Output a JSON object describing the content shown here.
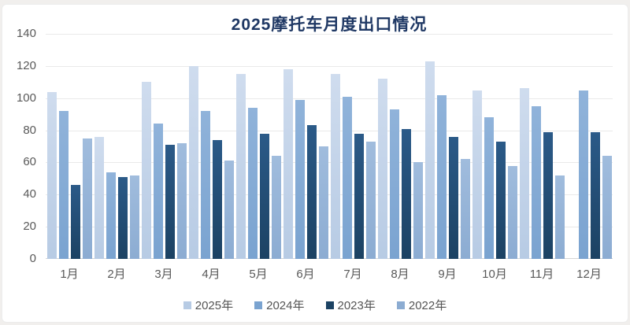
{
  "title_color": "#1f3864",
  "chart_data": {
    "type": "bar",
    "title": "2025摩托车月度出口情况",
    "xlabel": "",
    "ylabel": "",
    "ylim": [
      0,
      140
    ],
    "y_ticks": [
      0,
      20,
      40,
      60,
      80,
      100,
      120,
      140
    ],
    "grid": true,
    "legend_position": "bottom",
    "categories": [
      "1月",
      "2月",
      "3月",
      "4月",
      "5月",
      "6月",
      "7月",
      "8月",
      "9月",
      "10月",
      "11月",
      "12月"
    ],
    "series": [
      {
        "name": "2025年",
        "color": "#b7cbe4",
        "color_top": "#cfdcee",
        "values": [
          104,
          76,
          110,
          120,
          115,
          118,
          115,
          112,
          123,
          105,
          106,
          null
        ]
      },
      {
        "name": "2024年",
        "color": "#7aa3d0",
        "color_top": "#90b3da",
        "values": [
          92,
          54,
          84,
          92,
          94,
          99,
          101,
          93,
          102,
          88,
          95,
          105
        ]
      },
      {
        "name": "2023年",
        "color": "#1c4263",
        "color_top": "#2b5a88",
        "values": [
          46,
          51,
          71,
          74,
          78,
          83,
          78,
          81,
          76,
          73,
          79,
          79
        ]
      },
      {
        "name": "2022年",
        "color": "#8cacd2",
        "color_top": "#a0bcdd",
        "values": [
          75,
          52,
          72,
          61,
          64,
          70,
          73,
          60,
          62,
          58,
          52,
          64
        ]
      }
    ]
  }
}
